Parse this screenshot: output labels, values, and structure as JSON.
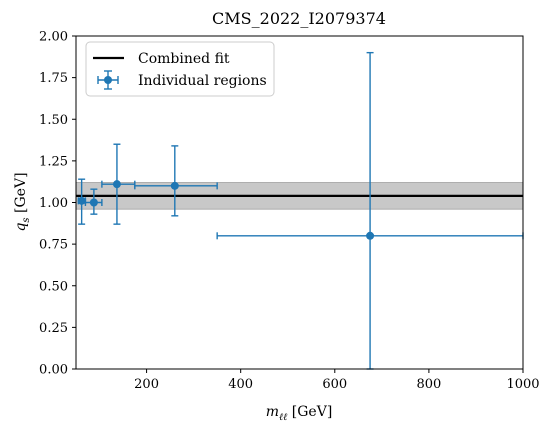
{
  "chart_data": {
    "type": "scatter",
    "title": "CMS_2022_I2079374",
    "xlabel_main": "m",
    "xlabel_sub": "ℓℓ",
    "xlabel_unit": " [GeV]",
    "ylabel_main": "q",
    "ylabel_sub": "s",
    "ylabel_unit": " [GeV]",
    "xlim": [
      50,
      1000
    ],
    "ylim": [
      0,
      2.0
    ],
    "x_ticks": [
      200,
      400,
      600,
      800,
      1000
    ],
    "x_tick_labels": [
      "200",
      "400",
      "600",
      "800",
      "1000"
    ],
    "y_ticks": [
      0,
      0.25,
      0.5,
      0.75,
      1.0,
      1.25,
      1.5,
      1.75,
      2.0
    ],
    "y_tick_labels": [
      "0.00",
      "0.25",
      "0.50",
      "0.75",
      "1.00",
      "1.25",
      "1.50",
      "1.75",
      "2.00"
    ],
    "grid": false,
    "legend_placement": "top-left",
    "legend": {
      "combined": "Combined fit",
      "individual": "Individual regions"
    },
    "combined_fit": {
      "value": 1.04,
      "band_low": 0.96,
      "band_high": 1.12,
      "line_color": "#000000",
      "band_color": "#c8c8c8"
    },
    "series": [
      {
        "name": "Individual regions",
        "color": "#1f77b4",
        "points": [
          {
            "x": 62,
            "y": 1.01,
            "xlow": 55,
            "xhigh": 70,
            "ylow": 0.87,
            "yhigh": 1.14
          },
          {
            "x": 88,
            "y": 1.0,
            "xlow": 70,
            "xhigh": 105,
            "ylow": 0.93,
            "yhigh": 1.08
          },
          {
            "x": 137,
            "y": 1.11,
            "xlow": 105,
            "xhigh": 175,
            "ylow": 0.87,
            "yhigh": 1.35
          },
          {
            "x": 260,
            "y": 1.1,
            "xlow": 175,
            "xhigh": 350,
            "ylow": 0.92,
            "yhigh": 1.34
          },
          {
            "x": 675,
            "y": 0.8,
            "xlow": 350,
            "xhigh": 1000,
            "ylow": 0.0,
            "yhigh": 1.9
          }
        ]
      }
    ]
  }
}
